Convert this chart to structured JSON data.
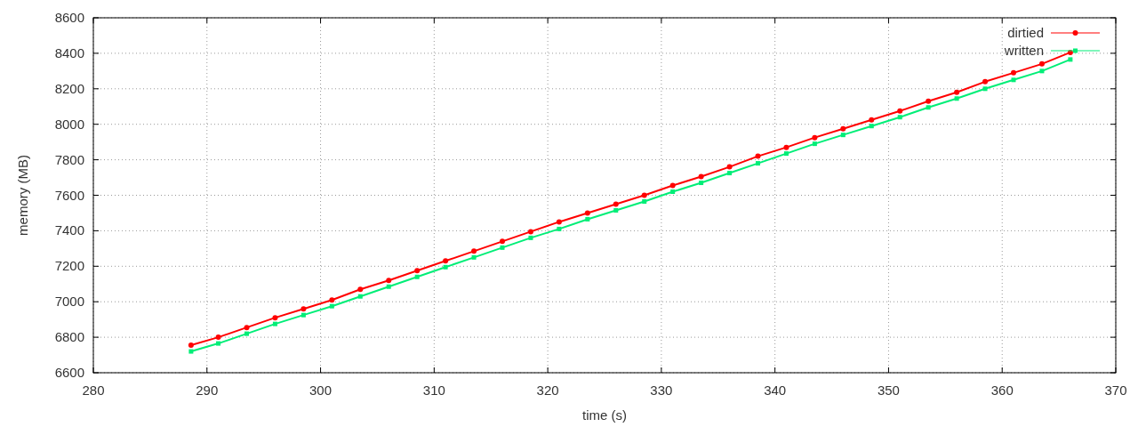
{
  "chart_data": {
    "type": "line",
    "xlabel": "time (s)",
    "ylabel": "memory (MB)",
    "xlim": [
      280,
      370
    ],
    "xticks": [
      280,
      290,
      300,
      310,
      320,
      330,
      340,
      350,
      360,
      370
    ],
    "ylim": [
      6600,
      8600
    ],
    "yticks": [
      6600,
      6800,
      7000,
      7200,
      7400,
      7600,
      7800,
      8000,
      8200,
      8400,
      8600
    ],
    "grid": true,
    "legend": "top right",
    "x": [
      288.6,
      291,
      293.5,
      296,
      298.5,
      301,
      303.5,
      306,
      308.5,
      311,
      313.5,
      316,
      318.5,
      321,
      323.5,
      326,
      328.5,
      331,
      333.5,
      336,
      338.5,
      341,
      343.5,
      346,
      348.5,
      351,
      353.5,
      356,
      358.5,
      361,
      363.5,
      366
    ],
    "series": [
      {
        "name": "dirtied",
        "color": "#ff0000",
        "marker": "circle",
        "values": [
          6755,
          6800,
          6855,
          6910,
          6960,
          7010,
          7070,
          7120,
          7175,
          7230,
          7285,
          7340,
          7395,
          7450,
          7500,
          7550,
          7600,
          7655,
          7705,
          7760,
          7820,
          7870,
          7925,
          7975,
          8025,
          8075,
          8130,
          8180,
          8240,
          8290,
          8340,
          8405
        ]
      },
      {
        "name": "written",
        "color": "#00ee77",
        "marker": "square",
        "values": [
          6720,
          6765,
          6820,
          6875,
          6925,
          6975,
          7030,
          7085,
          7140,
          7195,
          7250,
          7305,
          7360,
          7410,
          7465,
          7515,
          7565,
          7620,
          7670,
          7725,
          7780,
          7835,
          7890,
          7940,
          7990,
          8040,
          8095,
          8145,
          8200,
          8250,
          8300,
          8365
        ]
      }
    ]
  }
}
